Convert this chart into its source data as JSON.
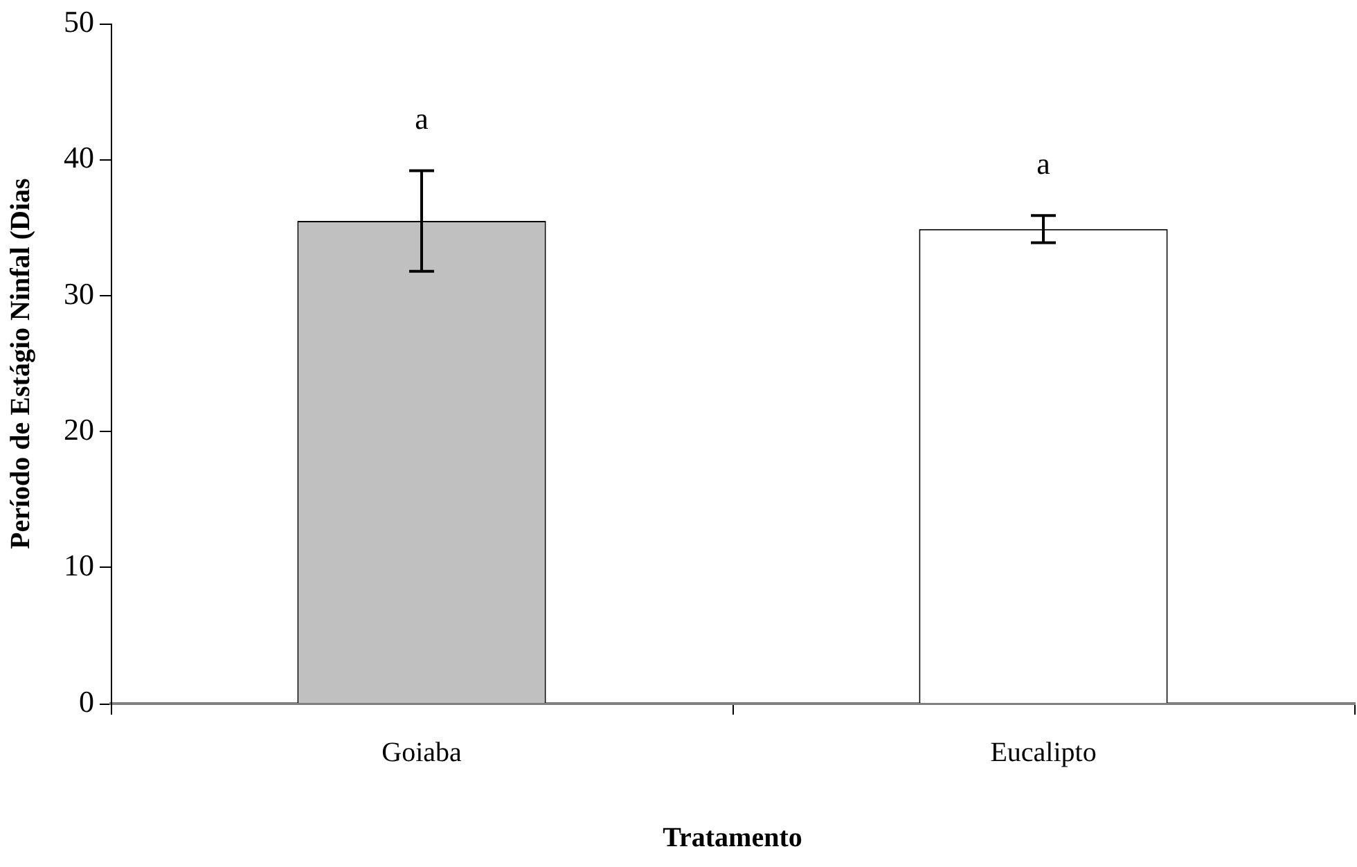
{
  "chart_data": {
    "type": "bar",
    "xlabel": "Tratamento",
    "ylabel": "Período de Estágio Ninfal (Dias",
    "categories": [
      "Goiaba",
      "Eucalipto"
    ],
    "values": [
      35.5,
      34.9
    ],
    "colors": [
      "#c0c0c0",
      "#ffffff"
    ],
    "errors": [
      3.7,
      1.0
    ],
    "ylim": [
      0,
      50
    ],
    "yticks": [
      0,
      10,
      20,
      30,
      40,
      50
    ],
    "grid": false,
    "legend": false,
    "annotations": [
      "a",
      "a"
    ]
  }
}
